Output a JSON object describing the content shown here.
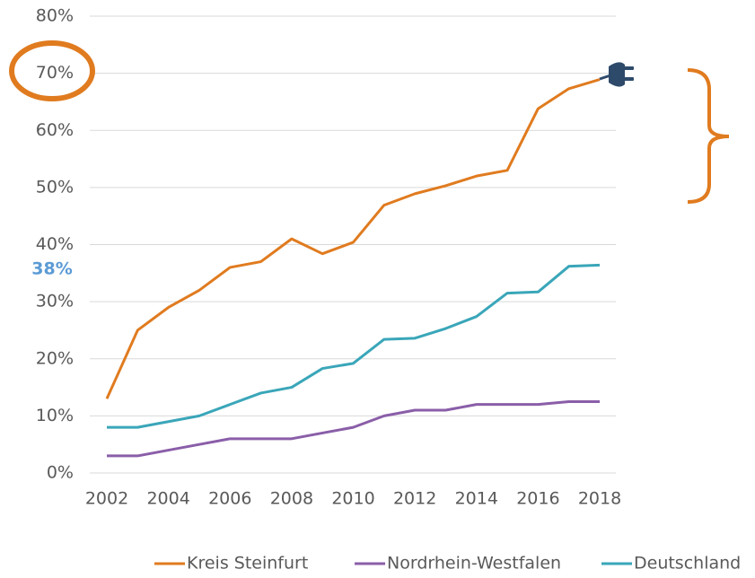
{
  "chart_data": {
    "type": "line",
    "x": [
      2002,
      2003,
      2004,
      2005,
      2006,
      2007,
      2008,
      2009,
      2010,
      2011,
      2012,
      2013,
      2014,
      2015,
      2016,
      2017,
      2018
    ],
    "series": [
      {
        "name": "Kreis Steinfurt",
        "color": "#e07b1f",
        "values": [
          13,
          25,
          29,
          32,
          36,
          37,
          41,
          38.4,
          40.4,
          46.9,
          48.9,
          50.3,
          52,
          53,
          63.8,
          67.3,
          68.9
        ]
      },
      {
        "name": "Nordrhein-Westfalen",
        "color": "#8a5ea8",
        "values": [
          3,
          3,
          4,
          5,
          6,
          6,
          6,
          7,
          8,
          10,
          11,
          11,
          12,
          12,
          12,
          12.5,
          12.5
        ]
      },
      {
        "name": "Deutschland",
        "color": "#3aa6b9",
        "values": [
          8,
          8,
          9,
          10,
          12,
          14,
          15,
          18.3,
          19.2,
          23.4,
          23.6,
          25.3,
          27.4,
          31.5,
          31.7,
          36.2,
          36.4
        ]
      }
    ],
    "xlim": [
      2002,
      2018
    ],
    "xticks": [
      2002,
      2004,
      2006,
      2008,
      2010,
      2012,
      2014,
      2016,
      2018
    ],
    "ylim": [
      0,
      80
    ],
    "yticks": [
      {
        "value": 0,
        "label": "0%"
      },
      {
        "value": 10,
        "label": "10%"
      },
      {
        "value": 20,
        "label": "20%"
      },
      {
        "value": 30,
        "label": "30%"
      },
      {
        "value": 40,
        "label": "40%"
      },
      {
        "value": 50,
        "label": "50%"
      },
      {
        "value": 60,
        "label": "60%"
      },
      {
        "value": 70,
        "label": "70%"
      },
      {
        "value": 80,
        "label": "80%"
      }
    ],
    "grid": true,
    "legend": "bottom",
    "annotations": [
      "38%"
    ]
  }
}
